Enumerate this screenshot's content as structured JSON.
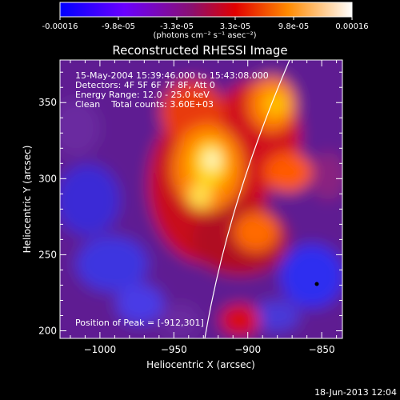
{
  "colorbar": {
    "tick_labels": [
      "-0.00016",
      "-9.8e-05",
      "-3.3e-05",
      "3.3e-05",
      "9.8e-05",
      "0.00016"
    ],
    "units_label": "(photons cm⁻² s⁻¹ asec⁻²)",
    "range": [
      -0.00016,
      0.00016
    ]
  },
  "title": "Reconstructed RHESSI Image",
  "info": {
    "time_range": "15-May-2004 15:39:46.000 to 15:43:08.000",
    "detectors": "Detectors: 4F 5F 6F 7F 8F, Att 0",
    "energy": "Energy Range: 12.0 - 25.0 keV",
    "clean": "Clean    Total counts: 3.60E+03",
    "peak": "Position of Peak = [-912,301]"
  },
  "axes": {
    "xlabel": "Heliocentric X (arcsec)",
    "ylabel": "Heliocentric Y (arcsec)",
    "xlim": [
      -1027,
      -836
    ],
    "ylim": [
      195,
      378
    ],
    "x_ticks": [
      -1000,
      -950,
      -900,
      -850
    ],
    "x_tick_labels": [
      "−1000",
      "−950",
      "−900",
      "−850"
    ],
    "y_ticks": [
      200,
      250,
      300,
      350
    ],
    "y_tick_labels": [
      "200",
      "250",
      "300",
      "350"
    ]
  },
  "footer": {
    "timestamp": "18-Jun-2013 12:04"
  },
  "colors": {
    "background": "#000000",
    "text": "#ffffff",
    "limb_line": "#ffffff"
  }
}
